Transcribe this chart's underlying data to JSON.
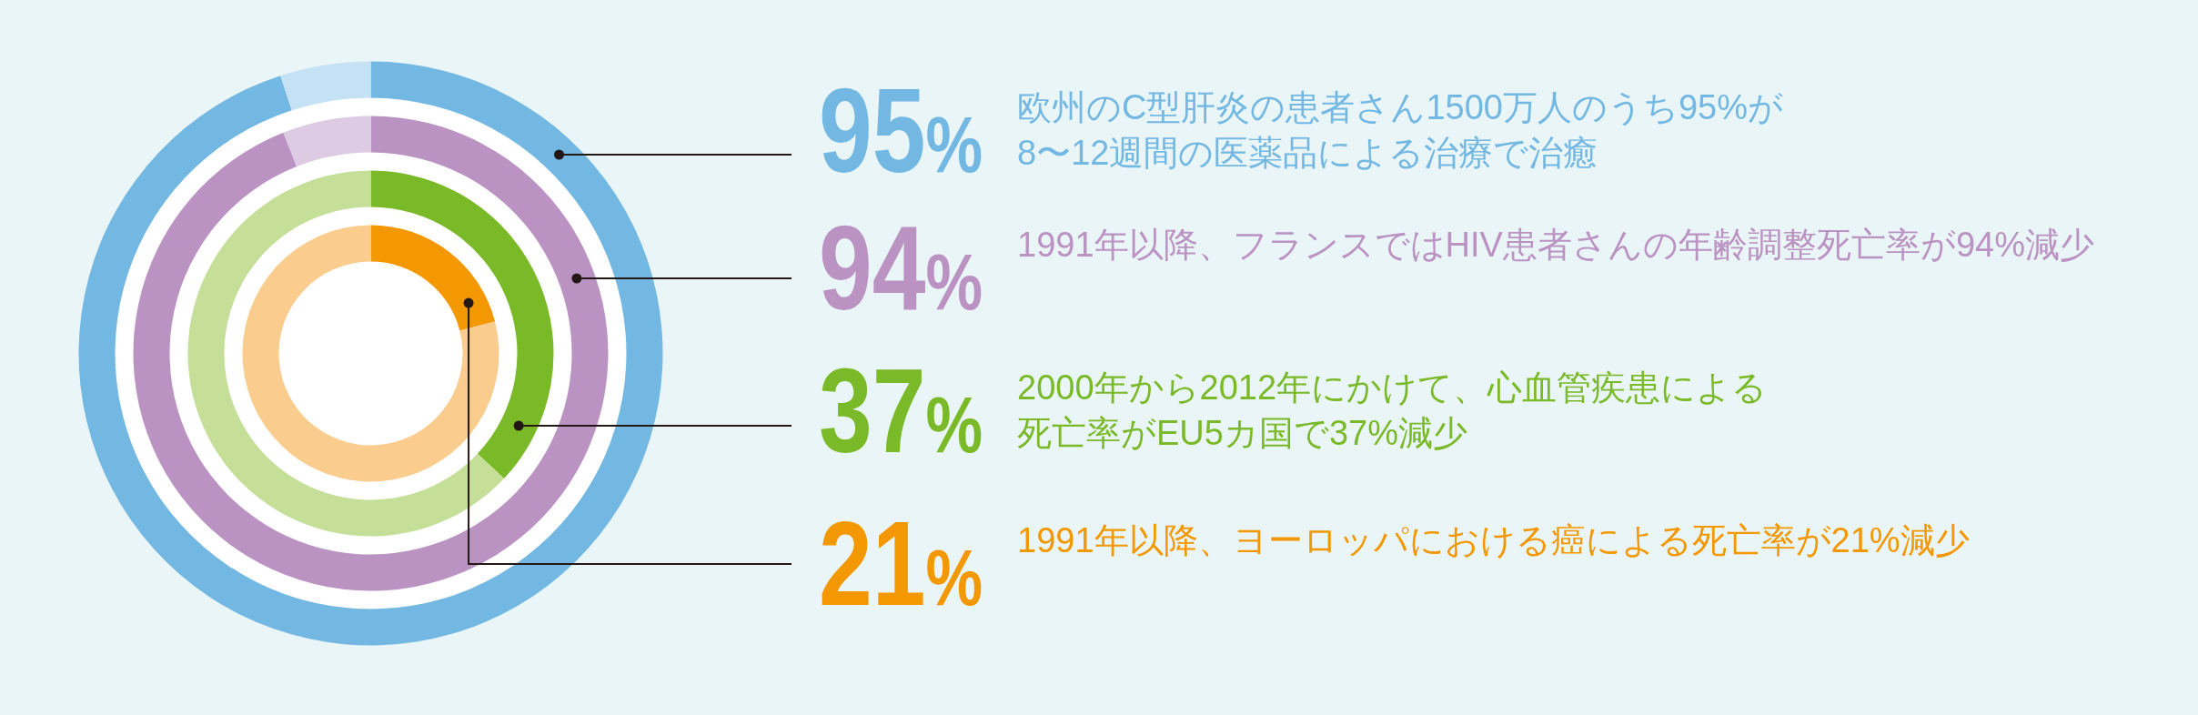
{
  "chart_data": [
    {
      "type": "donut",
      "categories": [
        null,
        null
      ],
      "values": [
        95,
        5
      ],
      "colors": [
        "#72b8e2",
        "#c5e2f5"
      ],
      "value_labels": [
        "95%",
        null
      ],
      "annotations": [
        "欧州のC型肝炎の患者さん1500万人のうち95%が",
        "8〜12週間の医薬品による治療で治癒"
      ]
    },
    {
      "type": "donut",
      "categories": [
        null,
        null
      ],
      "values": [
        94,
        6
      ],
      "colors": [
        "#bb93c3",
        "#dccbe3"
      ],
      "value_labels": [
        "94%",
        null
      ],
      "annotations": [
        "1991年以降、フランスではHIV患者さんの年齢調整死亡率が94%減少"
      ]
    },
    {
      "type": "donut",
      "categories": [
        null,
        null
      ],
      "values": [
        37,
        63
      ],
      "colors": [
        "#7aba28",
        "#c5df99"
      ],
      "value_labels": [
        "37%",
        null
      ],
      "annotations": [
        "2000年から2012年にかけて、心血管疾患による",
        "死亡率がEU5カ国で37%減少"
      ]
    },
    {
      "type": "donut",
      "categories": [
        null,
        null
      ],
      "values": [
        21,
        79
      ],
      "colors": [
        "#f39800",
        "#facd8e"
      ],
      "value_labels": [
        "21%",
        null
      ],
      "annotations": [
        "1991年以降、ヨーロッパにおける癌による死亡率が21%減少"
      ]
    }
  ]
}
